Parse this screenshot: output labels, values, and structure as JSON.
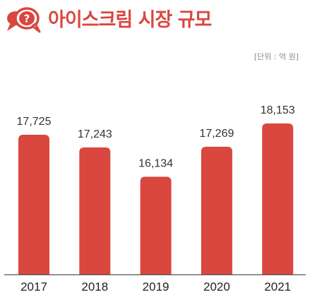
{
  "header": {
    "title": "아이스크림 시장 규모",
    "icon": "question-speech-bubble-icon",
    "icon_symbol": "?"
  },
  "unit_label": "[단위 : 억 원]",
  "colors": {
    "accent": "#d9473e",
    "bar": "#d9473e",
    "baseline": "#555555"
  },
  "chart_data": {
    "type": "bar",
    "title": "아이스크림 시장 규모",
    "xlabel": "",
    "ylabel": "",
    "categories": [
      "2017",
      "2018",
      "2019",
      "2020",
      "2021"
    ],
    "values": [
      17725,
      17243,
      16134,
      17269,
      18153
    ],
    "value_labels": [
      "17,725",
      "17,243",
      "16,134",
      "17,269",
      "18,153"
    ],
    "grid": false,
    "legend": "none"
  }
}
